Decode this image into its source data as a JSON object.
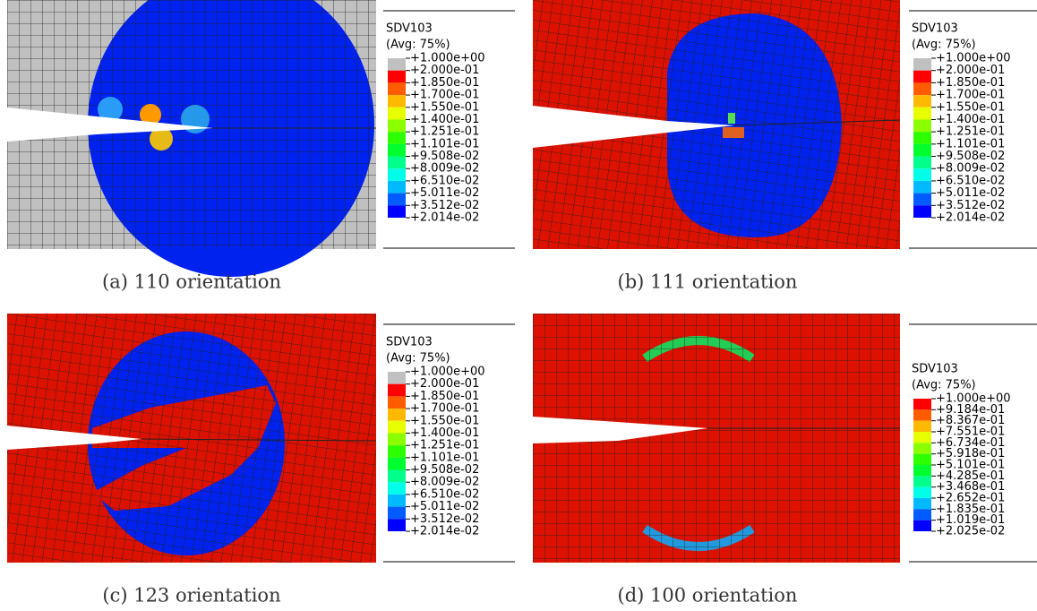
{
  "panels": [
    {
      "caption": "(a) 110 orientation",
      "legend": {
        "title": "SDV103",
        "subtitle": "(Avg: 75%)",
        "labels": [
          "+1.000e+00",
          "+2.000e-01",
          "+1.850e-01",
          "+1.700e-01",
          "+1.550e-01",
          "+1.400e-01",
          "+1.251e-01",
          "+1.101e-01",
          "+9.508e-02",
          "+8.009e-02",
          "+6.510e-02",
          "+5.011e-02",
          "+3.512e-02",
          "+2.014e-02"
        ],
        "colors": [
          "#c0c0c0",
          "#ff0000",
          "#ff5c00",
          "#ffb900",
          "#e8ff00",
          "#8bff00",
          "#2eff00",
          "#00ff2e",
          "#00ff8b",
          "#00ffe8",
          "#00b9ff",
          "#005cff",
          "#0000ff"
        ]
      }
    },
    {
      "caption": "(b) 111 orientation",
      "legend": {
        "title": "SDV103",
        "subtitle": "(Avg: 75%)",
        "labels": [
          "+1.000e+00",
          "+2.000e-01",
          "+1.850e-01",
          "+1.700e-01",
          "+1.550e-01",
          "+1.400e-01",
          "+1.251e-01",
          "+1.101e-01",
          "+9.508e-02",
          "+8.009e-02",
          "+6.510e-02",
          "+5.011e-02",
          "+3.512e-02",
          "+2.014e-02"
        ],
        "colors": [
          "#c0c0c0",
          "#ff0000",
          "#ff5c00",
          "#ffb900",
          "#e8ff00",
          "#8bff00",
          "#2eff00",
          "#00ff2e",
          "#00ff8b",
          "#00ffe8",
          "#00b9ff",
          "#005cff",
          "#0000ff"
        ]
      }
    },
    {
      "caption": "(c) 123 orientation",
      "legend": {
        "title": "SDV103",
        "subtitle": "(Avg: 75%)",
        "labels": [
          "+1.000e+00",
          "+2.000e-01",
          "+1.850e-01",
          "+1.700e-01",
          "+1.550e-01",
          "+1.400e-01",
          "+1.251e-01",
          "+1.101e-01",
          "+9.508e-02",
          "+8.009e-02",
          "+6.510e-02",
          "+5.011e-02",
          "+3.512e-02",
          "+2.014e-02"
        ],
        "colors": [
          "#c0c0c0",
          "#ff0000",
          "#ff5c00",
          "#ffb900",
          "#e8ff00",
          "#8bff00",
          "#2eff00",
          "#00ff2e",
          "#00ff8b",
          "#00ffe8",
          "#00b9ff",
          "#005cff",
          "#0000ff"
        ]
      }
    },
    {
      "caption": "(d) 100 orientation",
      "legend": {
        "title": "SDV103",
        "subtitle": "(Avg: 75%)",
        "labels": [
          "+1.000e+00",
          "+9.184e-01",
          "+8.367e-01",
          "+7.551e-01",
          "+6.734e-01",
          "+5.918e-01",
          "+5.101e-01",
          "+4.285e-01",
          "+3.468e-01",
          "+2.652e-01",
          "+1.835e-01",
          "+1.019e-01",
          "+2.025e-02"
        ],
        "colors": [
          "#ff0000",
          "#ff5c00",
          "#ffb900",
          "#e8ff00",
          "#8bff00",
          "#2eff00",
          "#00ff2e",
          "#00ff8b",
          "#00ffe8",
          "#00b9ff",
          "#005cff",
          "#0000ff"
        ]
      }
    }
  ]
}
